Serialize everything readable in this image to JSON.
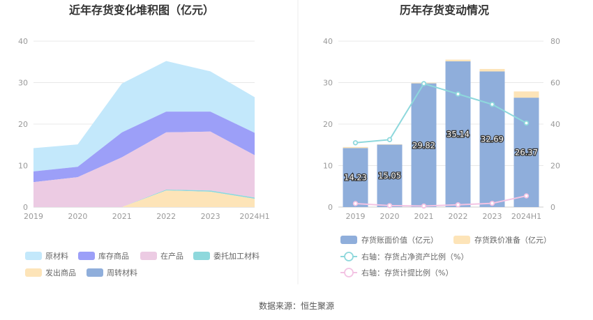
{
  "source": "数据来源：恒生聚源",
  "chart_data": [
    {
      "type": "area",
      "stacked": true,
      "title": "近年存货变化堆积图（亿元）",
      "categories": [
        "2019",
        "2020",
        "2021",
        "2022",
        "2023",
        "2024H1"
      ],
      "ylim": [
        0,
        40
      ],
      "yticks": [
        0,
        10,
        20,
        30,
        40
      ],
      "grid": true,
      "legend_position": "bottom",
      "series": [
        {
          "name": "原材料",
          "color": "#c3e8fb",
          "values": [
            5.6,
            5.4,
            11.8,
            12.2,
            9.7,
            8.6
          ]
        },
        {
          "name": "库存商品",
          "color": "#9c9ff8",
          "values": [
            2.6,
            2.5,
            6.0,
            5.0,
            4.8,
            5.4
          ]
        },
        {
          "name": "在产品",
          "color": "#eccbe3",
          "values": [
            6.0,
            7.2,
            12.0,
            13.8,
            14.2,
            10.2
          ]
        },
        {
          "name": "委托加工材料",
          "color": "#8ed8dc",
          "values": [
            0,
            0,
            0,
            0.2,
            0.3,
            0.3
          ]
        },
        {
          "name": "发出商品",
          "color": "#fde4b8",
          "values": [
            0,
            0,
            0,
            4.0,
            3.7,
            2.0
          ]
        },
        {
          "name": "周转材料",
          "color": "#8faedb",
          "values": [
            0,
            0,
            0,
            0,
            0,
            0
          ]
        }
      ]
    },
    {
      "type": "bar",
      "title": "历年存货变动情况",
      "categories": [
        "2019",
        "2020",
        "2021",
        "2022",
        "2023",
        "2024H1"
      ],
      "ylim": [
        0,
        40
      ],
      "yticks": [
        0,
        10,
        20,
        30,
        40
      ],
      "y2lim": [
        0,
        80
      ],
      "y2ticks": [
        0,
        20,
        40,
        60,
        80
      ],
      "grid": true,
      "legend_position": "bottom",
      "series": [
        {
          "name": "存货账面价值（亿元）",
          "kind": "bar",
          "color": "#8faedb",
          "values": [
            14.23,
            15.05,
            29.82,
            35.14,
            32.69,
            26.37
          ],
          "labels": [
            "14.23",
            "15.05",
            "29.82",
            "35.14",
            "32.69",
            "26.37"
          ]
        },
        {
          "name": "存货跌价准备（亿元）",
          "kind": "bar-stack",
          "color": "#fde4b8",
          "values": [
            0.25,
            0.1,
            0.15,
            0.4,
            0.6,
            1.5
          ]
        },
        {
          "name": "右轴：存货占净资产比例（%）",
          "kind": "line",
          "axis": "right",
          "color": "#8ed8dc",
          "values": [
            31,
            32.5,
            59.5,
            54.5,
            49.5,
            40.5
          ]
        },
        {
          "name": "右轴：存货计提比例（%）",
          "kind": "line",
          "axis": "right",
          "color": "#f3c3e3",
          "values": [
            1.7,
            0.7,
            0.5,
            1.1,
            1.8,
            5.4
          ]
        }
      ]
    }
  ]
}
